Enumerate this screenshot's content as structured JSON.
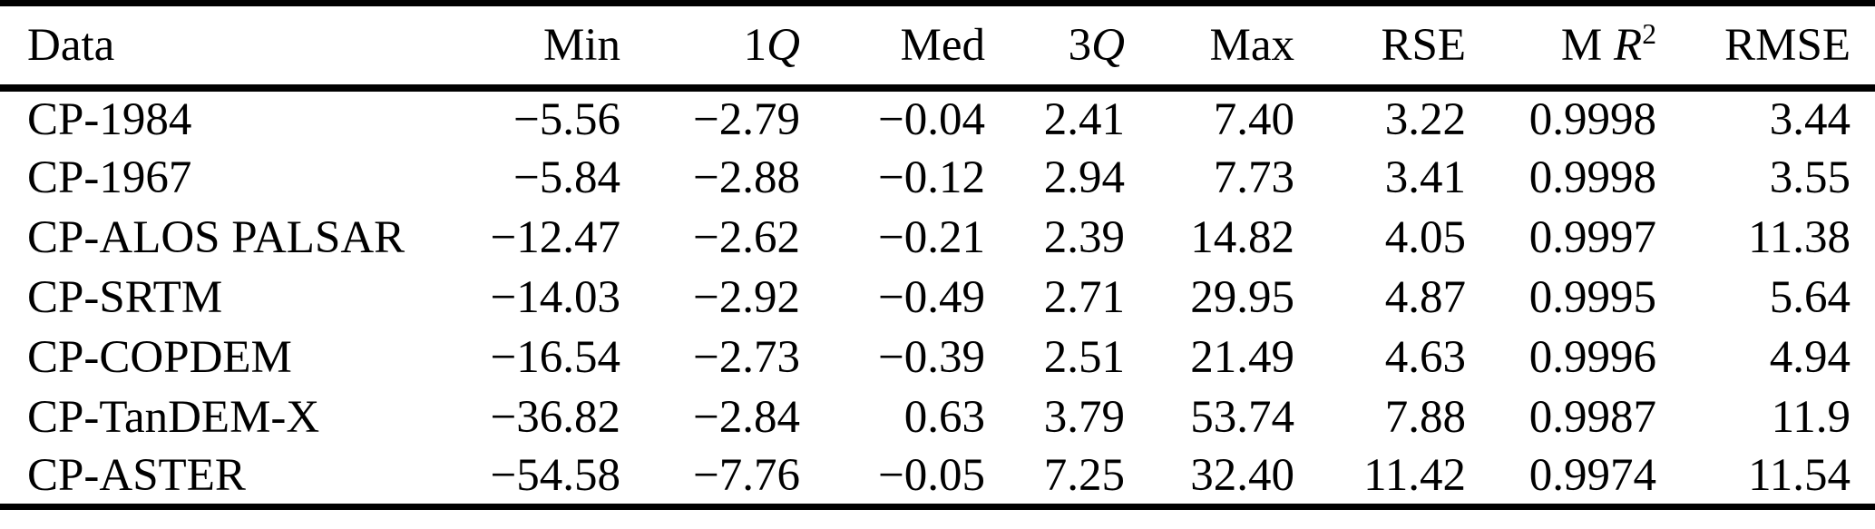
{
  "colors": {
    "text": "#000000",
    "background": "#ffffff",
    "rule": "#000000"
  },
  "table": {
    "columns": [
      {
        "key": "data",
        "align": "left",
        "segments": [
          {
            "t": "Data"
          }
        ]
      },
      {
        "key": "min",
        "segments": [
          {
            "t": "Min"
          }
        ]
      },
      {
        "key": "1q",
        "segments": [
          {
            "t": "1"
          },
          {
            "t": "Q",
            "style": "italic"
          }
        ]
      },
      {
        "key": "med",
        "segments": [
          {
            "t": "Med"
          }
        ]
      },
      {
        "key": "3q",
        "segments": [
          {
            "t": "3"
          },
          {
            "t": "Q",
            "style": "italic"
          }
        ]
      },
      {
        "key": "max",
        "segments": [
          {
            "t": "Max"
          }
        ]
      },
      {
        "key": "rse",
        "segments": [
          {
            "t": "RSE"
          }
        ]
      },
      {
        "key": "m-r2",
        "segments": [
          {
            "t": "M "
          },
          {
            "t": "R",
            "style": "italic"
          },
          {
            "t": "2",
            "style": "sup"
          }
        ]
      },
      {
        "key": "rmse",
        "segments": [
          {
            "t": "RMSE"
          }
        ]
      }
    ],
    "rows": [
      {
        "label": "CP-1984",
        "values": [
          "−5.56",
          "−2.79",
          "−0.04",
          "2.41",
          "7.40",
          "3.22",
          "0.9998",
          "3.44"
        ]
      },
      {
        "label": "CP-1967",
        "values": [
          "−5.84",
          "−2.88",
          "−0.12",
          "2.94",
          "7.73",
          "3.41",
          "0.9998",
          "3.55"
        ]
      },
      {
        "label": "CP-ALOS PALSAR",
        "values": [
          "−12.47",
          "−2.62",
          "−0.21",
          "2.39",
          "14.82",
          "4.05",
          "0.9997",
          "11.38"
        ]
      },
      {
        "label": "CP-SRTM",
        "values": [
          "−14.03",
          "−2.92",
          "−0.49",
          "2.71",
          "29.95",
          "4.87",
          "0.9995",
          "5.64"
        ]
      },
      {
        "label": "CP-COPDEM",
        "values": [
          "−16.54",
          "−2.73",
          "−0.39",
          "2.51",
          "21.49",
          "4.63",
          "0.9996",
          "4.94"
        ]
      },
      {
        "label": "CP-TanDEM-X",
        "values": [
          "−36.82",
          "−2.84",
          "0.63",
          "3.79",
          "53.74",
          "7.88",
          "0.9987",
          "11.9"
        ]
      },
      {
        "label": "CP-ASTER",
        "values": [
          "−54.58",
          "−7.76",
          "−0.05",
          "7.25",
          "32.40",
          "11.42",
          "0.9974",
          "11.54"
        ]
      }
    ]
  }
}
